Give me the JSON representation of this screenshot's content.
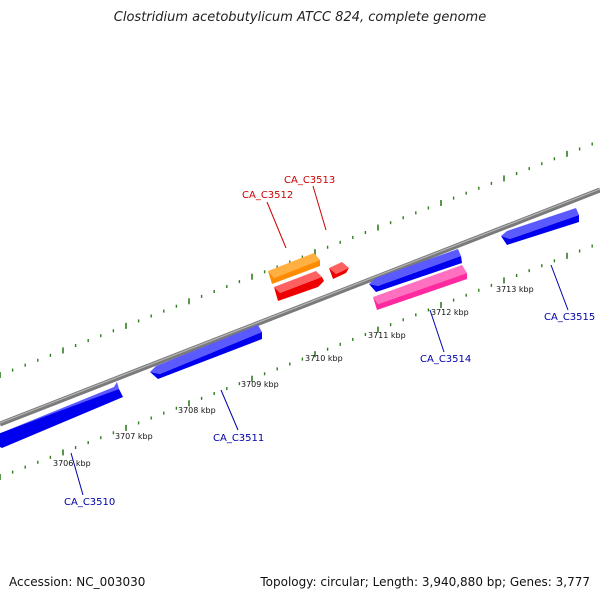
{
  "title": "Clostridium acetobutylicum ATCC 824, complete genome",
  "footer": {
    "accession": "Accession: NC_003030",
    "summary": "Topology: circular; Length: 3,940,880 bp; Genes: 3,777"
  },
  "colors": {
    "backbone": "#7a7a7a",
    "tick": "#2f7d1f",
    "forward_gene": "#0000ee",
    "reverse_gene": "#0000ee",
    "rna_orange": "#ff8c00",
    "red_gene": "#ee0000",
    "pink_gene": "#ff2aa0",
    "label_red": "#cc0000",
    "label_blue": "#0000aa"
  },
  "scale_labels": [
    "3706 kbp",
    "3707 kbp",
    "3708 kbp",
    "3709 kbp",
    "3710 kbp",
    "3711 kbp",
    "3712 kbp",
    "3713 kbp"
  ],
  "genes": [
    {
      "name": "CA_C3510",
      "color": "blue"
    },
    {
      "name": "CA_C3511",
      "color": "blue"
    },
    {
      "name": "CA_C3512",
      "color": "red"
    },
    {
      "name": "CA_C3513",
      "color": "red"
    },
    {
      "name": "CA_C3514",
      "color": "blue"
    },
    {
      "name": "CA_C3515",
      "color": "blue"
    }
  ]
}
